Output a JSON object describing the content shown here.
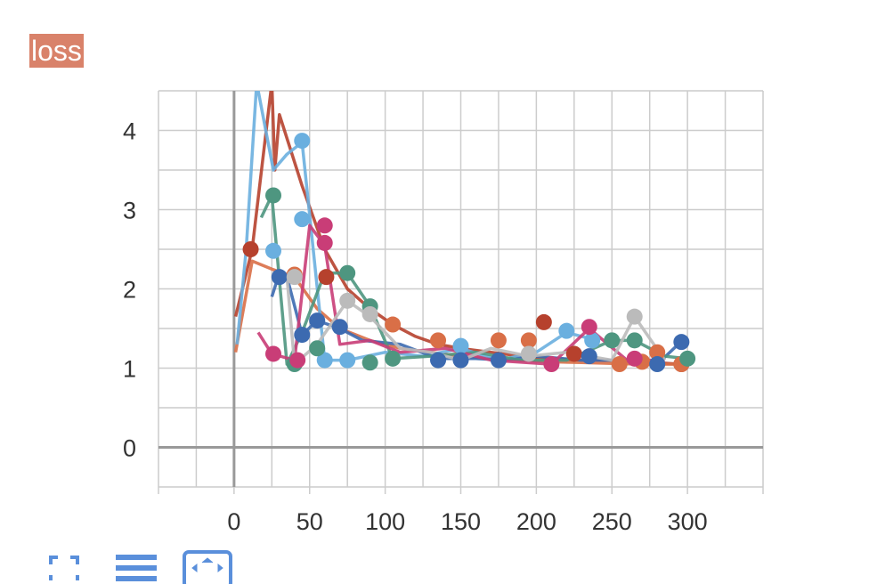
{
  "header": {
    "tag_label": "loss"
  },
  "colors": {
    "tag_bg": "#d9826a",
    "grid": "#cccccc",
    "axis": "#999999",
    "tick_text": "#333333"
  },
  "toolbar": {
    "buttons": [
      {
        "icon": "fullscreen-icon"
      },
      {
        "icon": "toggle-lines-icon"
      },
      {
        "icon": "fit-domain-icon"
      }
    ],
    "accent": "#5a8fdb"
  },
  "chart_data": {
    "type": "line",
    "title": "loss",
    "xlabel": "",
    "ylabel": "",
    "xlim": [
      -50,
      350
    ],
    "ylim": [
      -0.5,
      4.5
    ],
    "xticks": [
      0,
      50,
      100,
      150,
      200,
      250,
      300
    ],
    "yticks": [
      0,
      1,
      2,
      3,
      4
    ],
    "grid": true,
    "legend": "none",
    "series": [
      {
        "color": "#b6412d",
        "x": [
          1,
          12,
          25,
          27,
          30,
          45,
          60,
          75,
          90,
          105,
          120,
          135,
          150,
          170,
          190,
          210,
          230,
          250,
          270,
          295
        ],
        "y": [
          1.65,
          2.5,
          4.6,
          3.5,
          4.2,
          3.3,
          2.5,
          2.0,
          1.75,
          1.55,
          1.4,
          1.3,
          1.25,
          1.2,
          1.15,
          1.12,
          1.1,
          1.1,
          1.08,
          1.05
        ]
      },
      {
        "color": "#d96f47",
        "x": [
          1,
          12,
          25,
          40,
          55,
          70,
          90,
          110,
          130,
          150,
          170,
          190,
          210,
          230,
          250,
          270,
          295
        ],
        "y": [
          1.2,
          2.35,
          2.25,
          2.15,
          1.75,
          1.5,
          1.35,
          1.25,
          1.2,
          1.15,
          1.12,
          1.1,
          1.08,
          1.07,
          1.06,
          1.05,
          1.05
        ]
      },
      {
        "color": "#6aafdf",
        "x": [
          2,
          8,
          15,
          26,
          35,
          45,
          60,
          75,
          100,
          125,
          150,
          175,
          200,
          220,
          240
        ],
        "y": [
          1.3,
          2.5,
          4.6,
          3.5,
          3.7,
          3.85,
          1.1,
          1.1,
          1.2,
          1.15,
          1.25,
          1.1,
          1.2,
          1.45,
          1.35
        ]
      },
      {
        "color": "#3c6ab0",
        "x": [
          25,
          30,
          35,
          45,
          55,
          70,
          85,
          110,
          135,
          160,
          180,
          200,
          230,
          260,
          280,
          295
        ],
        "y": [
          1.9,
          2.2,
          2.15,
          1.42,
          1.6,
          1.5,
          1.35,
          1.3,
          1.12,
          1.12,
          1.1,
          1.15,
          1.1,
          1.1,
          1.05,
          1.32
        ]
      },
      {
        "color": "#4e9680",
        "x": [
          18,
          25,
          35,
          45,
          60,
          75,
          90,
          105,
          130,
          160,
          190,
          220,
          250,
          265,
          285,
          300
        ],
        "y": [
          2.9,
          3.18,
          1.05,
          1.45,
          2.2,
          2.2,
          1.78,
          1.12,
          1.15,
          1.2,
          1.1,
          1.1,
          1.35,
          1.35,
          1.15,
          1.12
        ]
      },
      {
        "color": "#c93d77",
        "x": [
          16,
          25,
          40,
          50,
          60,
          70,
          90,
          110,
          140,
          170,
          210,
          235,
          260,
          285
        ],
        "y": [
          1.45,
          1.18,
          1.1,
          2.8,
          2.55,
          1.3,
          1.35,
          1.2,
          1.25,
          1.1,
          1.05,
          1.5,
          1.1,
          1.1
        ]
      },
      {
        "color": "#bbbbbb",
        "x": [
          35,
          40,
          55,
          75,
          90,
          110,
          130,
          150,
          170,
          195,
          220,
          250,
          265,
          285
        ],
        "y": [
          2.15,
          1.05,
          1.3,
          1.85,
          1.65,
          1.25,
          1.2,
          1.1,
          1.25,
          1.15,
          1.2,
          1.1,
          1.65,
          1.1
        ]
      }
    ],
    "marker_points": [
      {
        "color": "#b6412d",
        "points": [
          [
            11,
            2.5
          ],
          [
            61,
            2.15
          ],
          [
            205,
            1.58
          ],
          [
            225,
            1.18
          ],
          [
            296,
            1.05
          ]
        ]
      },
      {
        "color": "#d96f47",
        "points": [
          [
            40,
            2.18
          ],
          [
            105,
            1.55
          ],
          [
            135,
            1.35
          ],
          [
            175,
            1.35
          ],
          [
            195,
            1.35
          ],
          [
            255,
            1.05
          ],
          [
            270,
            1.08
          ],
          [
            280,
            1.2
          ],
          [
            296,
            1.05
          ]
        ]
      },
      {
        "color": "#6aafdf",
        "points": [
          [
            26,
            2.48
          ],
          [
            45,
            2.88
          ],
          [
            45,
            3.87
          ],
          [
            60,
            1.1
          ],
          [
            75,
            1.1
          ],
          [
            150,
            1.28
          ],
          [
            220,
            1.47
          ],
          [
            237,
            1.35
          ]
        ]
      },
      {
        "color": "#3c6ab0",
        "points": [
          [
            30,
            2.15
          ],
          [
            45,
            1.42
          ],
          [
            55,
            1.6
          ],
          [
            70,
            1.52
          ],
          [
            135,
            1.1
          ],
          [
            150,
            1.1
          ],
          [
            175,
            1.1
          ],
          [
            235,
            1.15
          ],
          [
            280,
            1.05
          ],
          [
            296,
            1.33
          ]
        ]
      },
      {
        "color": "#4e9680",
        "points": [
          [
            26,
            3.18
          ],
          [
            40,
            1.05
          ],
          [
            55,
            1.25
          ],
          [
            75,
            2.2
          ],
          [
            90,
            1.78
          ],
          [
            90,
            1.07
          ],
          [
            105,
            1.12
          ],
          [
            250,
            1.35
          ],
          [
            265,
            1.35
          ],
          [
            300,
            1.12
          ]
        ]
      },
      {
        "color": "#c93d77",
        "points": [
          [
            26,
            1.18
          ],
          [
            42,
            1.1
          ],
          [
            60,
            2.58
          ],
          [
            60,
            2.8
          ],
          [
            210,
            1.05
          ],
          [
            235,
            1.52
          ],
          [
            265,
            1.12
          ]
        ]
      },
      {
        "color": "#bbbbbb",
        "points": [
          [
            40,
            2.15
          ],
          [
            75,
            1.85
          ],
          [
            90,
            1.68
          ],
          [
            195,
            1.18
          ],
          [
            265,
            1.65
          ]
        ]
      }
    ]
  }
}
